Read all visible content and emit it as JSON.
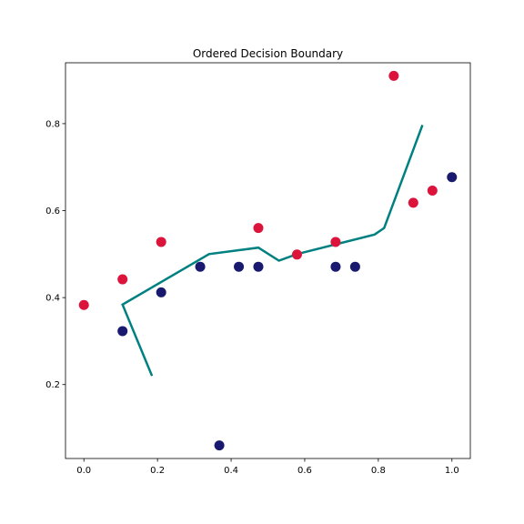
{
  "chart_data": {
    "type": "scatter",
    "title": "Ordered Decision Boundary",
    "xlabel": "",
    "ylabel": "",
    "xlim": [
      -0.05,
      1.05
    ],
    "ylim": [
      0.03,
      0.94
    ],
    "x_ticks": [
      0.0,
      0.2,
      0.4,
      0.6,
      0.8,
      1.0
    ],
    "x_tick_labels": [
      "0.0",
      "0.2",
      "0.4",
      "0.6",
      "0.8",
      "1.0"
    ],
    "y_ticks": [
      0.2,
      0.4,
      0.6,
      0.8
    ],
    "y_tick_labels": [
      "0.2",
      "0.4",
      "0.6",
      "0.8"
    ],
    "grid": false,
    "legend": "none",
    "series": [
      {
        "kind": "scatter",
        "color": "#dc143c",
        "points": [
          {
            "x": 0.0,
            "y": 0.383
          },
          {
            "x": 0.105,
            "y": 0.442
          },
          {
            "x": 0.21,
            "y": 0.528
          },
          {
            "x": 0.474,
            "y": 0.56
          },
          {
            "x": 0.579,
            "y": 0.499
          },
          {
            "x": 0.684,
            "y": 0.528
          },
          {
            "x": 0.842,
            "y": 0.91
          },
          {
            "x": 0.895,
            "y": 0.618
          },
          {
            "x": 0.947,
            "y": 0.646
          }
        ]
      },
      {
        "kind": "scatter",
        "color": "#191970",
        "points": [
          {
            "x": 0.105,
            "y": 0.323
          },
          {
            "x": 0.21,
            "y": 0.412
          },
          {
            "x": 0.316,
            "y": 0.471
          },
          {
            "x": 0.368,
            "y": 0.06
          },
          {
            "x": 0.421,
            "y": 0.471
          },
          {
            "x": 0.474,
            "y": 0.471
          },
          {
            "x": 0.684,
            "y": 0.471
          },
          {
            "x": 0.737,
            "y": 0.471
          },
          {
            "x": 1.0,
            "y": 0.677
          }
        ]
      },
      {
        "kind": "line",
        "color": "#008080",
        "points": [
          {
            "x": 0.185,
            "y": 0.22
          },
          {
            "x": 0.105,
            "y": 0.384
          },
          {
            "x": 0.34,
            "y": 0.5
          },
          {
            "x": 0.474,
            "y": 0.515
          },
          {
            "x": 0.53,
            "y": 0.485
          },
          {
            "x": 0.579,
            "y": 0.5
          },
          {
            "x": 0.79,
            "y": 0.545
          },
          {
            "x": 0.816,
            "y": 0.56
          },
          {
            "x": 0.92,
            "y": 0.797
          }
        ]
      }
    ]
  }
}
